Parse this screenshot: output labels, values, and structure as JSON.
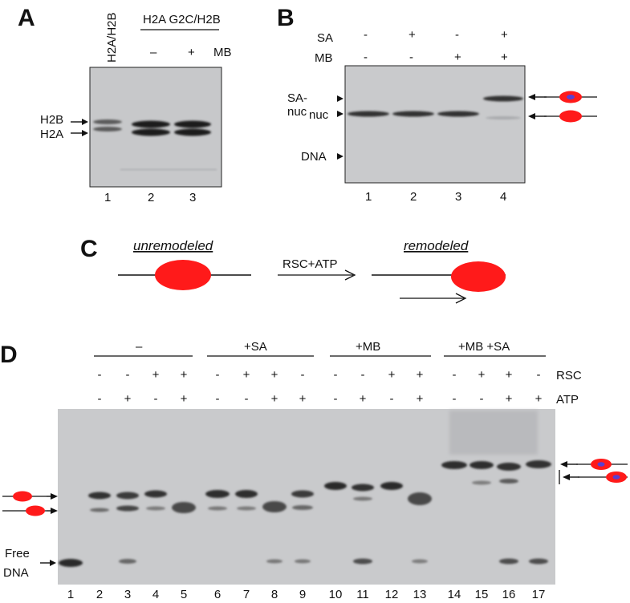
{
  "panelA": {
    "letter": "A",
    "col1_label": "H2A/H2B",
    "group_label": "H2A G2C/H2B",
    "mb_label": "MB",
    "mb_signs": [
      "–",
      "+"
    ],
    "band_labels": [
      "H2B",
      "H2A"
    ],
    "lanes": [
      "1",
      "2",
      "3"
    ]
  },
  "panelB": {
    "letter": "B",
    "row_labels": [
      "SA",
      "MB"
    ],
    "sa_signs": [
      "-",
      "+",
      "-",
      "+"
    ],
    "mb_signs": [
      "-",
      "-",
      "+",
      "+"
    ],
    "band_label_sanuc_1": "SA-",
    "band_label_sanuc_2": "nuc",
    "band_label_nuc": "nuc",
    "band_label_dna": "DNA",
    "lanes": [
      "1",
      "2",
      "3",
      "4"
    ]
  },
  "panelC": {
    "letter": "C",
    "left_label": "unremodeled",
    "right_label": "remodeled",
    "arrow_label": "RSC+ATP"
  },
  "panelD": {
    "letter": "D",
    "groups": [
      "–",
      "+SA",
      "+MB",
      "+MB +SA"
    ],
    "rsc_label": "RSC",
    "atp_label": "ATP",
    "rsc_signs": [
      "-",
      "-",
      "+",
      "+",
      "-",
      "+",
      "+",
      "-",
      "-",
      "-",
      "+",
      "+",
      "-",
      "+",
      "+",
      "-"
    ],
    "atp_signs": [
      "-",
      "+",
      "-",
      "+",
      "-",
      "-",
      "+",
      "+",
      "-",
      "+",
      "-",
      "+",
      "-",
      "-",
      "+",
      "+"
    ],
    "free_dna_1": "Free",
    "free_dna_2": "DNA",
    "lanes": [
      "1",
      "2",
      "3",
      "4",
      "5",
      "6",
      "7",
      "8",
      "9",
      "10",
      "11",
      "12",
      "13",
      "14",
      "15",
      "16",
      "17"
    ]
  },
  "colors": {
    "nucleosome": "#ff1a1a",
    "streptavidin": "#5a3fd0",
    "gel": "#c9cacc"
  }
}
